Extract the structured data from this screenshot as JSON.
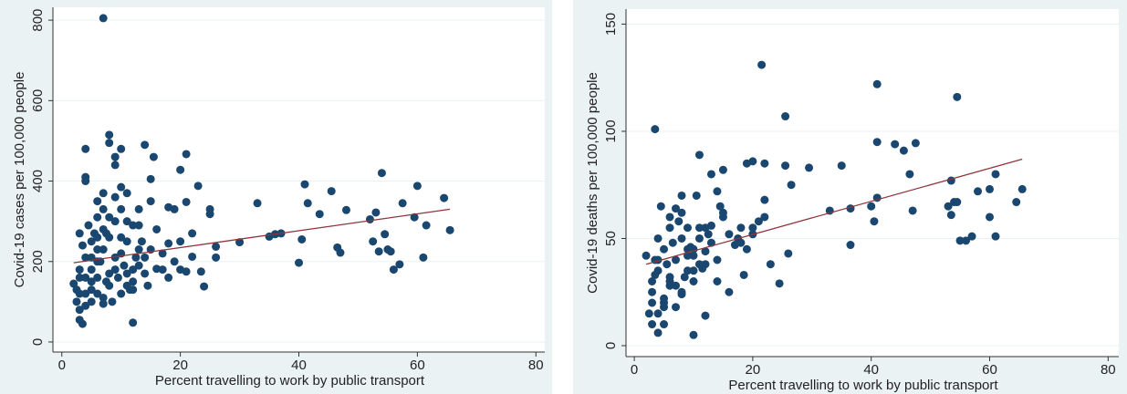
{
  "chart_data": [
    {
      "type": "scatter",
      "x_label": "Percent travelling to work by public transport",
      "y_label": "Covid-19 cases per 100,000 people",
      "xlim": [
        -1.5,
        81.5
      ],
      "ylim": [
        -25,
        832
      ],
      "xticks": [
        0,
        20,
        40,
        60,
        80
      ],
      "yticks": [
        0,
        200,
        400,
        600,
        800
      ],
      "grid": true,
      "color": "#1a476f",
      "x": [
        7,
        33,
        35,
        36,
        37,
        40,
        40.5,
        41,
        41.5,
        43.5,
        45.5,
        46.5,
        47,
        48,
        52,
        52.5,
        53,
        54,
        54.5,
        55,
        55.5,
        56,
        57,
        57.5,
        59.5,
        60,
        61,
        61.5,
        64.5,
        65.5,
        53.5,
        30,
        25,
        25,
        26,
        26,
        24,
        23,
        22,
        21,
        20,
        21,
        22,
        23.5,
        21,
        20,
        19,
        18,
        18,
        17,
        16,
        15.5,
        15,
        15,
        14,
        13,
        12,
        12,
        11,
        10,
        10,
        9,
        9,
        8,
        8,
        7.5,
        7,
        6,
        5,
        4,
        4,
        4,
        3.5,
        3,
        3,
        2.5,
        2,
        3,
        4,
        5,
        6,
        7,
        8,
        9,
        10,
        11,
        12,
        13,
        14,
        5,
        6,
        7,
        8,
        9,
        10,
        11,
        12,
        13,
        14,
        3,
        4,
        5,
        6,
        7,
        8,
        9,
        10,
        11,
        3.5,
        4.5,
        5.5,
        6.5,
        7.5,
        8.5,
        9.5,
        10.5,
        11.5,
        12.5,
        13.5,
        14.5,
        15,
        16,
        17,
        18,
        19,
        20,
        4,
        5,
        6,
        7,
        2.5,
        3,
        3,
        4,
        5,
        6,
        8,
        9,
        10,
        11,
        12,
        13,
        7,
        6
      ],
      "values": [
        805,
        345,
        262,
        268,
        270,
        197,
        255,
        392,
        345,
        318,
        375,
        235,
        222,
        328,
        305,
        250,
        322,
        420,
        268,
        230,
        225,
        180,
        193,
        345,
        310,
        388,
        210,
        290,
        358,
        278,
        225,
        248,
        330,
        318,
        237,
        210,
        138,
        388,
        212,
        467,
        428,
        348,
        270,
        175,
        175,
        250,
        330,
        335,
        245,
        180,
        182,
        460,
        405,
        350,
        490,
        290,
        48,
        130,
        370,
        385,
        480,
        460,
        440,
        515,
        495,
        270,
        370,
        310,
        250,
        480,
        410,
        400,
        45,
        55,
        270,
        100,
        145,
        80,
        120,
        150,
        200,
        230,
        260,
        300,
        220,
        170,
        150,
        190,
        210,
        130,
        160,
        110,
        140,
        180,
        120,
        250,
        290,
        330,
        170,
        180,
        210,
        180,
        230,
        280,
        170,
        210,
        260,
        300,
        240,
        290,
        270,
        200,
        150,
        100,
        160,
        190,
        130,
        210,
        250,
        140,
        230,
        280,
        220,
        160,
        200,
        180,
        90,
        100,
        120,
        95,
        130,
        160,
        120,
        160,
        210,
        260,
        310,
        360,
        330,
        140,
        180,
        230,
        330,
        350
      ],
      "fit_color": "#90353b",
      "fit_x": [
        2,
        65.5
      ],
      "fit_values": [
        197,
        330
      ]
    },
    {
      "type": "scatter",
      "x_label": "Percent travelling to work by public transport",
      "y_label": "Covid-19 deaths per 100,000 people",
      "xlim": [
        -1.4,
        81.8
      ],
      "ylim": [
        -5.1,
        157
      ],
      "xticks": [
        0,
        20,
        40,
        60,
        80
      ],
      "yticks": [
        0,
        50,
        100,
        150
      ],
      "grid": true,
      "color": "#1a476f",
      "x": [
        21.5,
        41,
        54.5,
        25.5,
        3.5,
        41,
        44,
        45.5,
        47.5,
        46.5,
        53.5,
        61,
        58,
        60,
        65.5,
        64.5,
        60,
        61,
        57,
        56,
        55,
        54.5,
        54,
        53,
        53.5,
        47,
        41,
        40.5,
        40,
        36.5,
        36.5,
        33,
        35,
        29.5,
        26.5,
        25.5,
        26,
        24.5,
        23,
        22,
        22,
        21,
        20,
        19,
        18.5,
        17.5,
        16,
        15,
        14.5,
        14,
        13,
        12,
        11,
        10,
        9,
        8,
        7,
        6,
        5,
        4,
        3.5,
        3,
        2.5,
        2,
        3,
        4,
        5,
        6,
        7,
        8,
        9,
        10,
        11,
        12,
        13,
        14,
        15,
        16,
        17,
        18,
        19,
        20,
        3,
        4,
        5,
        6,
        7,
        8,
        9,
        10,
        11,
        12,
        13,
        14,
        3.5,
        4.5,
        5.5,
        6.5,
        7.5,
        8.5,
        9.5,
        10.5,
        11.5,
        12.5,
        4,
        5,
        6,
        7,
        8,
        9,
        10,
        11,
        3,
        4,
        5,
        6,
        8,
        10,
        12,
        15,
        18,
        20,
        22
      ],
      "values": [
        131,
        122,
        116,
        107,
        101,
        95,
        94,
        91,
        94.5,
        80,
        77,
        80,
        72,
        73,
        73,
        67,
        60,
        51,
        51,
        49,
        49,
        67,
        67,
        65,
        61,
        63,
        69,
        58,
        65,
        47,
        64,
        63,
        84,
        83,
        75,
        84,
        43,
        29,
        38,
        85,
        60,
        58,
        86,
        85,
        33,
        50,
        25,
        82,
        65,
        30,
        80,
        14,
        89,
        5,
        55,
        70,
        64,
        60,
        10,
        6,
        33,
        20,
        15,
        42,
        25,
        35,
        45,
        30,
        40,
        50,
        35,
        45,
        38,
        55,
        48,
        40,
        60,
        52,
        47,
        55,
        45,
        52,
        30,
        50,
        20,
        55,
        28,
        62,
        42,
        35,
        50,
        44,
        56,
        72,
        40,
        65,
        38,
        48,
        58,
        32,
        46,
        70,
        36,
        52,
        15,
        22,
        28,
        18,
        25,
        45,
        30,
        55,
        10,
        40,
        18,
        32,
        24,
        42,
        38,
        62,
        48,
        55,
        68
      ],
      "fit_color": "#90353b",
      "fit_x": [
        2,
        65.5
      ],
      "fit_values": [
        38,
        87
      ]
    }
  ]
}
